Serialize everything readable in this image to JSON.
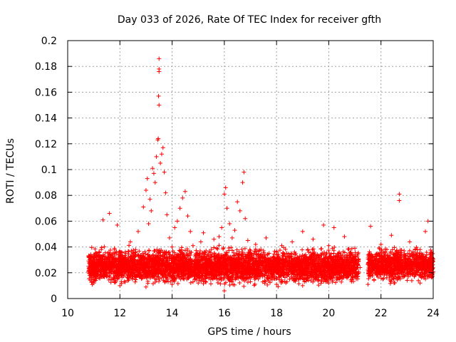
{
  "chart_data": {
    "type": "scatter",
    "title": "Day 033 of 2026, Rate Of TEC Index for receiver gfth",
    "xlabel": "GPS time / hours",
    "ylabel": "ROTI / TECUs",
    "xlim": [
      10,
      24
    ],
    "ylim": [
      0,
      0.2
    ],
    "xticks": [
      "10",
      "12",
      "14",
      "16",
      "18",
      "20",
      "22",
      "24"
    ],
    "xtick_values": [
      10,
      12,
      14,
      16,
      18,
      20,
      22,
      24
    ],
    "yticks": [
      "0",
      "0.02",
      "0.04",
      "0.06",
      "0.08",
      "0.1",
      "0.12",
      "0.14",
      "0.16",
      "0.18",
      "0.2"
    ],
    "ytick_values": [
      0,
      0.02,
      0.04,
      0.06,
      0.08,
      0.1,
      0.12,
      0.14,
      0.16,
      0.18,
      0.2
    ],
    "grid": true,
    "marker": "+",
    "color": "#ff0000",
    "series": [
      {
        "name": "ROTI",
        "points": [
          [
            10.8,
            0.025
          ],
          [
            10.9,
            0.031
          ],
          [
            11.0,
            0.022
          ],
          [
            11.1,
            0.035
          ],
          [
            11.2,
            0.028
          ],
          [
            11.3,
            0.019
          ],
          [
            11.35,
            0.061
          ],
          [
            11.4,
            0.033
          ],
          [
            11.5,
            0.024
          ],
          [
            11.6,
            0.066
          ],
          [
            11.7,
            0.029
          ],
          [
            11.8,
            0.021
          ],
          [
            11.9,
            0.057
          ],
          [
            12.0,
            0.036
          ],
          [
            12.1,
            0.027
          ],
          [
            12.2,
            0.031
          ],
          [
            12.3,
            0.018
          ],
          [
            12.4,
            0.044
          ],
          [
            12.5,
            0.026
          ],
          [
            12.6,
            0.038
          ],
          [
            12.7,
            0.052
          ],
          [
            12.8,
            0.03
          ],
          [
            12.9,
            0.071
          ],
          [
            13.0,
            0.084
          ],
          [
            13.05,
            0.093
          ],
          [
            13.1,
            0.058
          ],
          [
            13.15,
            0.077
          ],
          [
            13.2,
            0.068
          ],
          [
            13.25,
            0.101
          ],
          [
            13.3,
            0.097
          ],
          [
            13.35,
            0.09
          ],
          [
            13.4,
            0.11
          ],
          [
            13.45,
            0.123
          ],
          [
            13.47,
            0.124
          ],
          [
            13.5,
            0.186
          ],
          [
            13.5,
            0.178
          ],
          [
            13.5,
            0.176
          ],
          [
            13.48,
            0.157
          ],
          [
            13.5,
            0.15
          ],
          [
            13.55,
            0.105
          ],
          [
            13.6,
            0.112
          ],
          [
            13.65,
            0.117
          ],
          [
            13.7,
            0.098
          ],
          [
            13.75,
            0.082
          ],
          [
            13.8,
            0.065
          ],
          [
            13.9,
            0.047
          ],
          [
            14.0,
            0.04
          ],
          [
            14.1,
            0.055
          ],
          [
            14.2,
            0.06
          ],
          [
            14.3,
            0.07
          ],
          [
            14.4,
            0.078
          ],
          [
            14.5,
            0.083
          ],
          [
            14.6,
            0.064
          ],
          [
            14.7,
            0.052
          ],
          [
            14.8,
            0.041
          ],
          [
            14.9,
            0.034
          ],
          [
            15.0,
            0.029
          ],
          [
            15.1,
            0.044
          ],
          [
            15.2,
            0.051
          ],
          [
            15.3,
            0.037
          ],
          [
            15.4,
            0.026
          ],
          [
            15.5,
            0.033
          ],
          [
            15.6,
            0.046
          ],
          [
            15.7,
            0.039
          ],
          [
            15.8,
            0.048
          ],
          [
            15.9,
            0.055
          ],
          [
            16.0,
            0.081
          ],
          [
            16.05,
            0.086
          ],
          [
            16.1,
            0.07
          ],
          [
            16.2,
            0.058
          ],
          [
            16.3,
            0.047
          ],
          [
            16.4,
            0.053
          ],
          [
            16.5,
            0.075
          ],
          [
            16.6,
            0.068
          ],
          [
            16.7,
            0.09
          ],
          [
            16.75,
            0.098
          ],
          [
            16.8,
            0.062
          ],
          [
            16.9,
            0.045
          ],
          [
            17.0,
            0.037
          ],
          [
            17.2,
            0.042
          ],
          [
            17.4,
            0.033
          ],
          [
            17.6,
            0.047
          ],
          [
            17.8,
            0.029
          ],
          [
            18.0,
            0.036
          ],
          [
            18.2,
            0.041
          ],
          [
            18.4,
            0.027
          ],
          [
            18.6,
            0.044
          ],
          [
            18.8,
            0.031
          ],
          [
            19.0,
            0.052
          ],
          [
            19.2,
            0.038
          ],
          [
            19.4,
            0.046
          ],
          [
            19.6,
            0.03
          ],
          [
            19.8,
            0.057
          ],
          [
            20.0,
            0.041
          ],
          [
            20.2,
            0.055
          ],
          [
            20.4,
            0.036
          ],
          [
            20.6,
            0.048
          ],
          [
            20.8,
            0.027
          ],
          [
            21.0,
            0.039
          ],
          [
            21.2,
            0.024
          ],
          [
            21.6,
            0.056
          ],
          [
            21.8,
            0.034
          ],
          [
            22.0,
            0.042
          ],
          [
            22.2,
            0.028
          ],
          [
            22.4,
            0.049
          ],
          [
            22.6,
            0.037
          ],
          [
            22.7,
            0.081
          ],
          [
            22.7,
            0.076
          ],
          [
            22.9,
            0.031
          ],
          [
            23.1,
            0.044
          ],
          [
            23.3,
            0.029
          ],
          [
            23.5,
            0.038
          ],
          [
            23.7,
            0.052
          ],
          [
            23.8,
            0.06
          ],
          [
            23.9,
            0.035
          ],
          [
            11.0,
            0.012
          ],
          [
            12.0,
            0.01
          ],
          [
            13.0,
            0.009
          ],
          [
            14.0,
            0.011
          ],
          [
            15.0,
            0.012
          ],
          [
            16.0,
            0.006
          ],
          [
            17.0,
            0.013
          ],
          [
            18.0,
            0.011
          ],
          [
            19.0,
            0.01
          ],
          [
            20.0,
            0.012
          ],
          [
            21.5,
            0.011
          ],
          [
            22.5,
            0.012
          ],
          [
            23.5,
            0.012
          ]
        ]
      }
    ],
    "dense_band": {
      "description": "dense cluster of ROTI values",
      "segments": [
        {
          "x_from": 10.8,
          "x_to": 21.15,
          "y_center": 0.025,
          "y_spread": 0.012
        },
        {
          "x_from": 21.5,
          "x_to": 24.0,
          "y_center": 0.026,
          "y_spread": 0.011
        }
      ]
    }
  }
}
